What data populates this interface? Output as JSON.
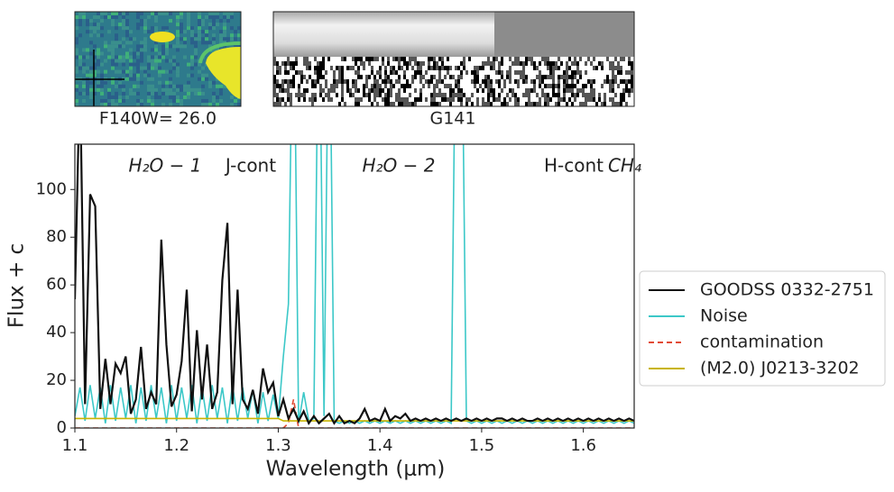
{
  "chart_data": {
    "type": "line",
    "thumbnail_labels": [
      "F140W= 26.0",
      "G141"
    ],
    "annotations": [
      "H₂O − 1",
      "J-cont",
      "H₂O − 2",
      "H-cont",
      "CH₄"
    ],
    "xlabel": "Wavelength (μm)",
    "ylabel": "Flux + c",
    "xlim": [
      1.1,
      1.65
    ],
    "ylim": [
      0,
      119
    ],
    "xticks": [
      1.1,
      1.2,
      1.3,
      1.4,
      1.5,
      1.6
    ],
    "yticks": [
      0,
      20,
      40,
      60,
      80,
      100
    ],
    "legend": "right",
    "x": [
      1.1,
      1.105,
      1.11,
      1.115,
      1.12,
      1.125,
      1.13,
      1.135,
      1.14,
      1.145,
      1.15,
      1.155,
      1.16,
      1.165,
      1.17,
      1.175,
      1.18,
      1.185,
      1.19,
      1.195,
      1.2,
      1.205,
      1.21,
      1.215,
      1.22,
      1.225,
      1.23,
      1.235,
      1.24,
      1.245,
      1.25,
      1.255,
      1.26,
      1.265,
      1.27,
      1.275,
      1.28,
      1.285,
      1.29,
      1.295,
      1.3,
      1.305,
      1.31,
      1.315,
      1.32,
      1.325,
      1.33,
      1.335,
      1.34,
      1.345,
      1.35,
      1.355,
      1.36,
      1.365,
      1.37,
      1.375,
      1.38,
      1.385,
      1.39,
      1.395,
      1.4,
      1.405,
      1.41,
      1.415,
      1.42,
      1.425,
      1.43,
      1.435,
      1.44,
      1.445,
      1.45,
      1.455,
      1.46,
      1.465,
      1.47,
      1.475,
      1.48,
      1.485,
      1.49,
      1.495,
      1.5,
      1.505,
      1.51,
      1.515,
      1.52,
      1.525,
      1.53,
      1.535,
      1.54,
      1.545,
      1.55,
      1.555,
      1.56,
      1.565,
      1.57,
      1.575,
      1.58,
      1.585,
      1.59,
      1.595,
      1.6,
      1.605,
      1.61,
      1.615,
      1.62,
      1.625,
      1.63,
      1.635,
      1.64,
      1.645,
      1.65
    ],
    "series": [
      {
        "name": "GOODSS 0332-2751",
        "color": "#111111",
        "style": "solid",
        "values": [
          54,
          150,
          10,
          98,
          93,
          8,
          29,
          10,
          27,
          23,
          30,
          6,
          12,
          34,
          8,
          15,
          10,
          79,
          35,
          9,
          14,
          28,
          58,
          7,
          41,
          12,
          35,
          8,
          15,
          62,
          86,
          10,
          58,
          12,
          8,
          16,
          6,
          25,
          15,
          19,
          5,
          12,
          4,
          8,
          3,
          7,
          2,
          5,
          2,
          4,
          6,
          2,
          5,
          2,
          3,
          2,
          4,
          8,
          3,
          4,
          3,
          8,
          3,
          5,
          4,
          6,
          3,
          4,
          3,
          4,
          3,
          4,
          3,
          4,
          3,
          4,
          3,
          4,
          3,
          4,
          3,
          4,
          3,
          4,
          4,
          3,
          4,
          3,
          4,
          3,
          3,
          4,
          3,
          4,
          3,
          4,
          3,
          4,
          3,
          4,
          3,
          4,
          3,
          4,
          3,
          4,
          3,
          4,
          3,
          4,
          3
        ]
      },
      {
        "name": "Noise",
        "color": "#3cc8c8",
        "style": "solid",
        "values": [
          5,
          17,
          3,
          18,
          4,
          17,
          2,
          18,
          3,
          17,
          4,
          18,
          2,
          17,
          3,
          18,
          4,
          17,
          2,
          18,
          3,
          17,
          4,
          18,
          2,
          17,
          3,
          18,
          4,
          17,
          2,
          18,
          3,
          17,
          4,
          16,
          2,
          15,
          3,
          14,
          4,
          30,
          52,
          200,
          2,
          15,
          3,
          4,
          200,
          5,
          200,
          3,
          2,
          3,
          2,
          3,
          2,
          3,
          2,
          3,
          2,
          3,
          2,
          3,
          2,
          3,
          2,
          3,
          2,
          3,
          2,
          3,
          2,
          3,
          2,
          200,
          200,
          3,
          2,
          3,
          2,
          3,
          2,
          3,
          2,
          3,
          2,
          3,
          2,
          3,
          2,
          3,
          2,
          3,
          2,
          3,
          2,
          3,
          2,
          3,
          2,
          3,
          2,
          3,
          2,
          3,
          2,
          3,
          2,
          3,
          2
        ]
      },
      {
        "name": "contamination",
        "color": "#e24a33",
        "style": "dashed",
        "values": [
          0,
          0,
          0,
          0,
          0,
          0,
          0,
          0,
          0,
          0,
          0,
          0,
          0,
          0,
          0,
          0,
          0,
          0,
          0,
          0,
          0,
          0,
          0,
          0,
          0,
          0,
          0,
          0,
          0,
          0,
          0,
          0,
          0,
          0,
          0,
          0,
          0,
          0,
          0,
          0,
          0,
          0,
          2,
          12,
          0,
          0,
          0,
          0,
          0,
          0,
          0,
          0,
          0,
          0,
          0,
          0,
          0,
          0,
          0,
          0,
          0,
          0,
          0,
          0,
          0,
          0,
          0,
          0,
          0,
          0,
          0,
          0,
          0,
          0,
          0,
          0,
          0,
          0,
          0,
          0,
          0,
          0,
          0,
          0,
          0,
          0,
          0,
          0,
          0,
          0,
          0,
          0,
          0,
          0,
          0,
          0,
          0,
          0,
          0,
          0,
          0,
          0,
          0,
          0,
          0,
          0,
          0,
          0,
          0,
          0,
          0
        ]
      },
      {
        "name": "(M2.0) J0213-3202",
        "color": "#c8b400",
        "style": "solid",
        "values": [
          4,
          4,
          4,
          4,
          4,
          4,
          4,
          4,
          4,
          4,
          4,
          4,
          4,
          4,
          4,
          4,
          4,
          4,
          4,
          4,
          4,
          4,
          4,
          4,
          4,
          4,
          4,
          4,
          4,
          4,
          4,
          4,
          4,
          4,
          4,
          4,
          4,
          4,
          4,
          4,
          4,
          3,
          3,
          3,
          3,
          3,
          3,
          3,
          3,
          3,
          3,
          3,
          3,
          3,
          3,
          3,
          3,
          3,
          3,
          3,
          3,
          3,
          3,
          3,
          3,
          3,
          3,
          3,
          3,
          3,
          3,
          3,
          3,
          3,
          3,
          3,
          3,
          3,
          3,
          3,
          3,
          3,
          3,
          3,
          3,
          3,
          3,
          3,
          3,
          3,
          3,
          3,
          3,
          3,
          3,
          3,
          3,
          3,
          3,
          3,
          3,
          3,
          3,
          3,
          3,
          3,
          3,
          3,
          3,
          3,
          3
        ]
      }
    ]
  }
}
